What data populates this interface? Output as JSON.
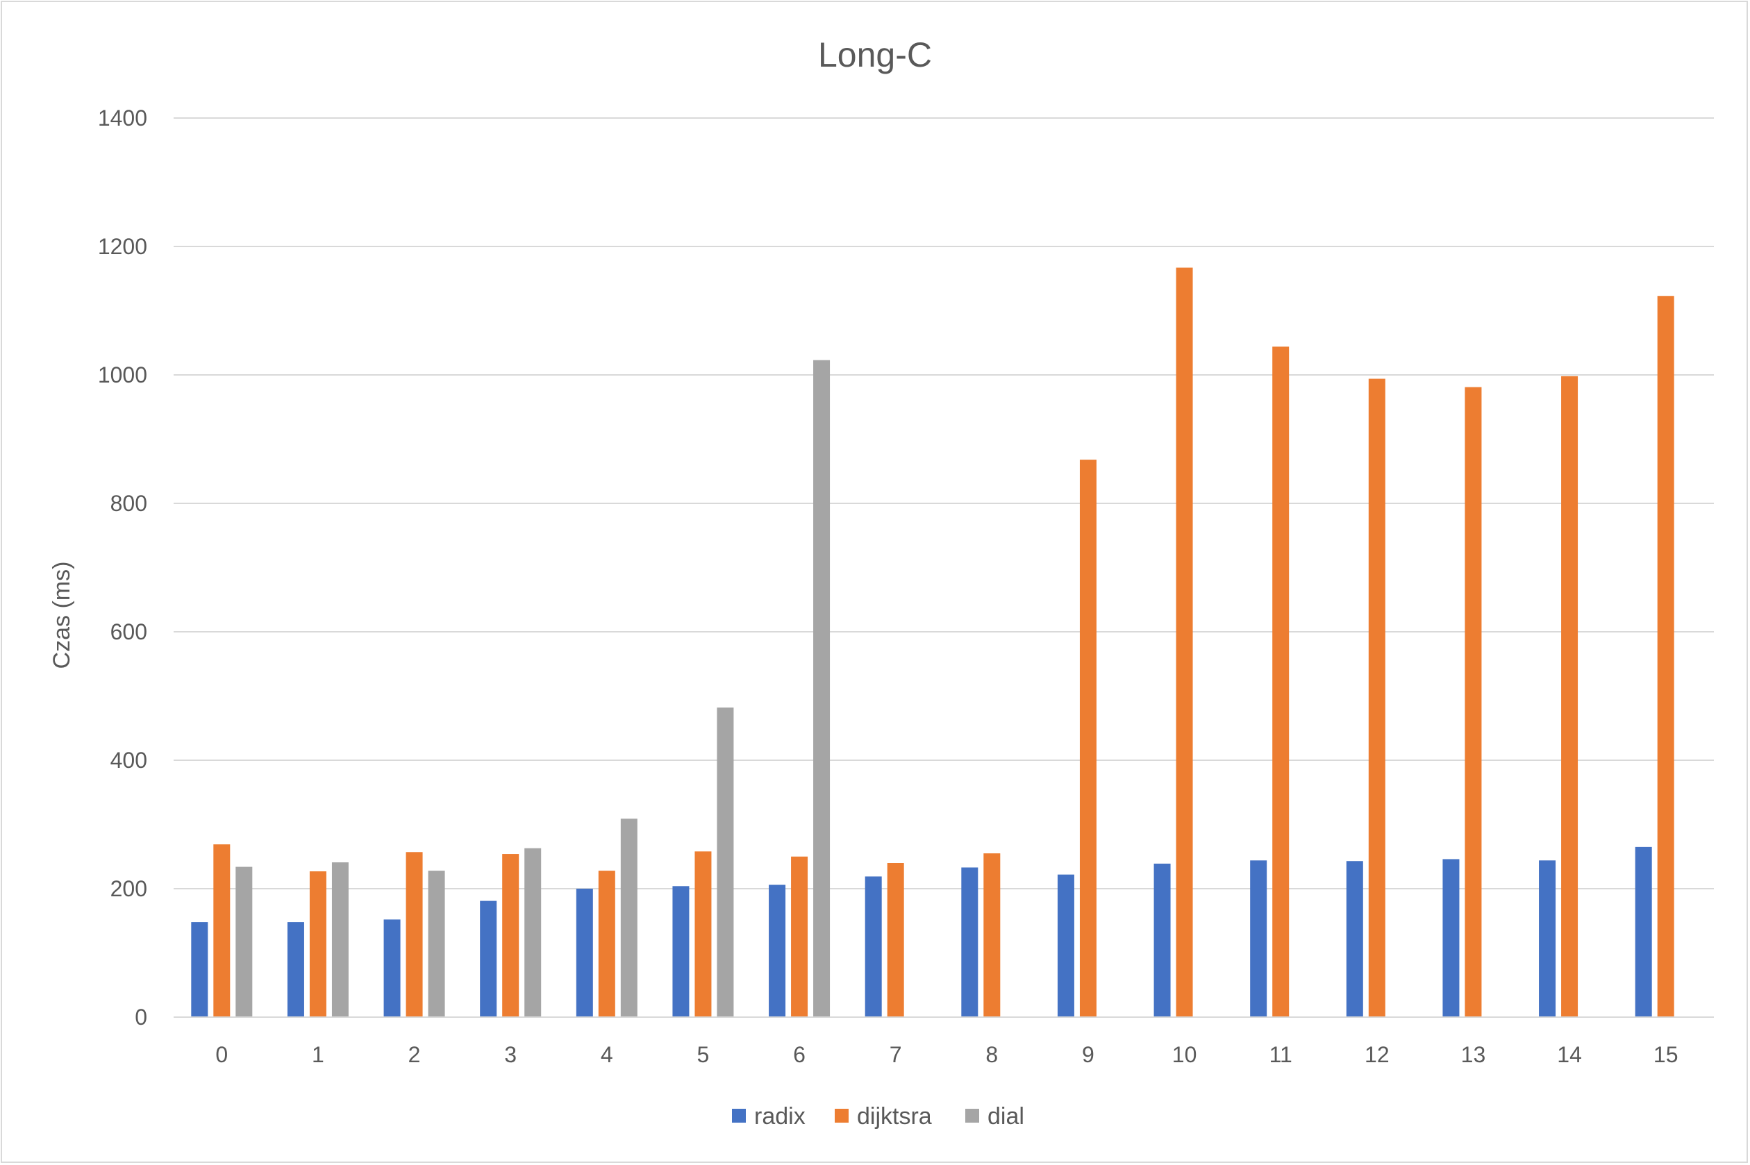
{
  "chart_data": {
    "type": "bar",
    "title": "Long-C",
    "xlabel": "",
    "ylabel": "Czas (ms)",
    "ylim": [
      0,
      1400
    ],
    "yticks": [
      0,
      200,
      400,
      600,
      800,
      1000,
      1200,
      1400
    ],
    "grid": true,
    "legend_position": "bottom",
    "categories": [
      "0",
      "1",
      "2",
      "3",
      "4",
      "5",
      "6",
      "7",
      "8",
      "9",
      "10",
      "11",
      "12",
      "13",
      "14",
      "15"
    ],
    "series": [
      {
        "name": "radix",
        "color": "#4472c4",
        "values": [
          148,
          148,
          152,
          181,
          200,
          204,
          206,
          219,
          233,
          222,
          239,
          244,
          243,
          246,
          244,
          265
        ]
      },
      {
        "name": "dijktsra",
        "color": "#ed7d31",
        "values": [
          269,
          227,
          257,
          254,
          228,
          258,
          250,
          240,
          255,
          868,
          1167,
          1044,
          994,
          981,
          998,
          1123
        ]
      },
      {
        "name": "dial",
        "color": "#a5a5a5",
        "values": [
          234,
          241,
          228,
          263,
          309,
          482,
          1023,
          null,
          null,
          null,
          null,
          null,
          null,
          null,
          null,
          null
        ]
      }
    ]
  }
}
